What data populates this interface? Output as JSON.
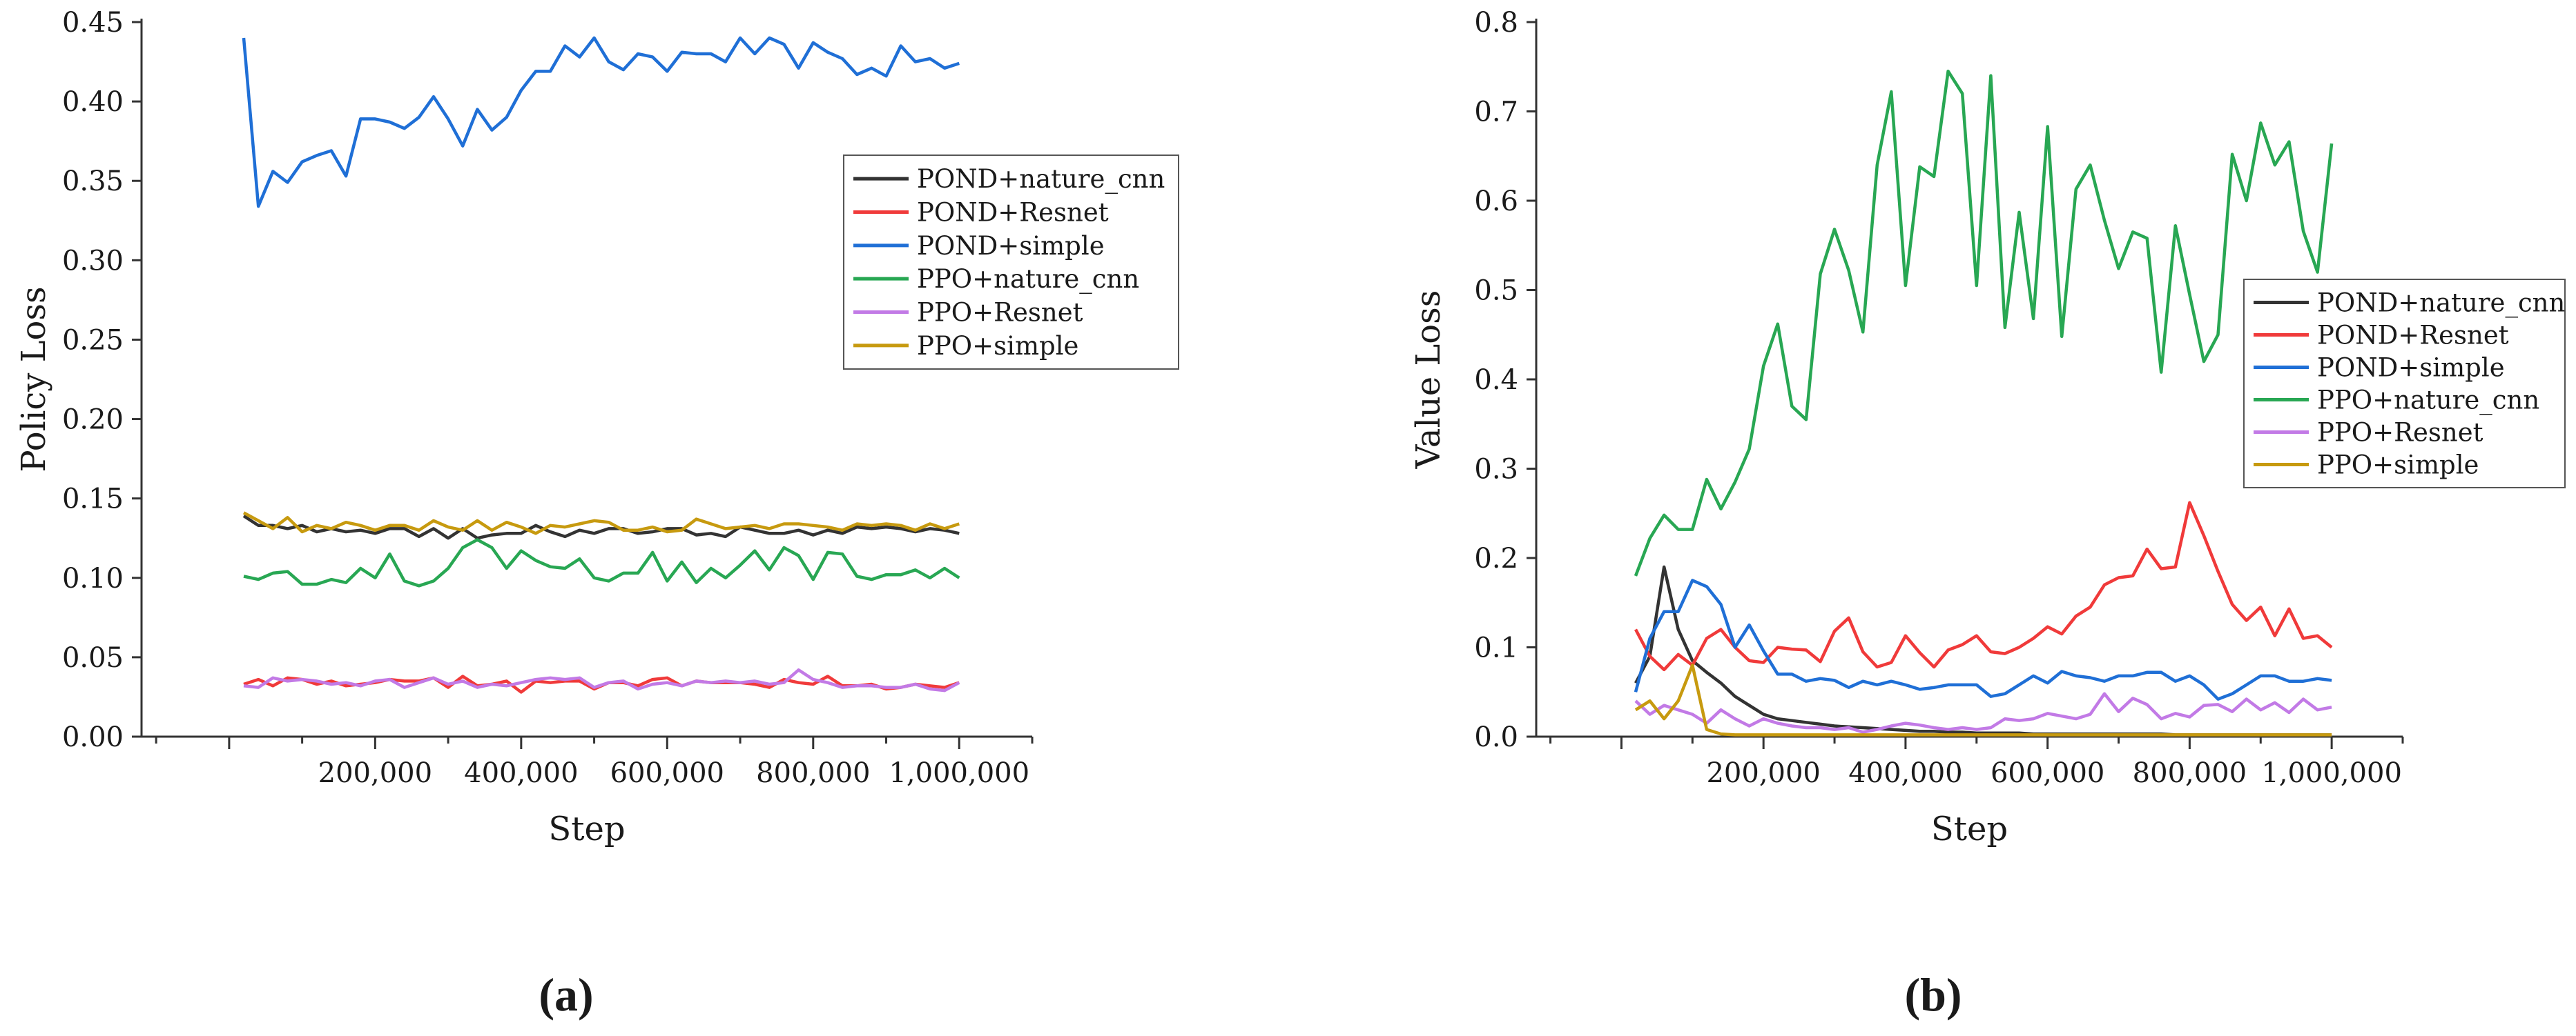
{
  "colors": {
    "POND+nature_cnn": "#333333",
    "POND+Resnet": "#f03a3a",
    "POND+simple": "#1f6fd6",
    "PPO+nature_cnn": "#28a753",
    "PPO+Resnet": "#c27ae6",
    "PPO+simple": "#c79a0f"
  },
  "chart_data": [
    {
      "type": "line",
      "caption": "(a)",
      "xlabel": "Step",
      "ylabel": "Policy Loss",
      "xlim": [
        -120000,
        1100000
      ],
      "ylim": [
        0,
        0.45
      ],
      "xticks": [
        0,
        200000,
        400000,
        600000,
        800000,
        1000000
      ],
      "xtick_labels": [
        "200,000",
        "400,000",
        "600,000",
        "800,000",
        "1,000,000"
      ],
      "xtick_label_values": [
        200000,
        400000,
        600000,
        800000,
        1000000
      ],
      "yticks": [
        0,
        0.05,
        0.1,
        0.15,
        0.2,
        0.25,
        0.3,
        0.35,
        0.4,
        0.45
      ],
      "ytick_labels": [
        "0.00",
        "0.05",
        "0.10",
        "0.15",
        "0.20",
        "0.25",
        "0.30",
        "0.35",
        "0.40",
        "0.45"
      ],
      "legend_position": "upper-right",
      "x": [
        20000,
        40000,
        60000,
        80000,
        100000,
        120000,
        140000,
        160000,
        180000,
        200000,
        220000,
        240000,
        260000,
        280000,
        300000,
        320000,
        340000,
        360000,
        380000,
        400000,
        420000,
        440000,
        460000,
        480000,
        500000,
        520000,
        540000,
        560000,
        580000,
        600000,
        620000,
        640000,
        660000,
        680000,
        700000,
        720000,
        740000,
        760000,
        780000,
        800000,
        820000,
        840000,
        860000,
        880000,
        900000,
        920000,
        940000,
        960000,
        980000,
        1000000
      ],
      "series": [
        {
          "name": "POND+nature_cnn",
          "values": [
            0.139,
            0.133,
            0.133,
            0.131,
            0.133,
            0.129,
            0.131,
            0.129,
            0.13,
            0.128,
            0.131,
            0.131,
            0.126,
            0.131,
            0.125,
            0.131,
            0.125,
            0.127,
            0.128,
            0.128,
            0.133,
            0.129,
            0.126,
            0.13,
            0.128,
            0.131,
            0.131,
            0.128,
            0.129,
            0.131,
            0.131,
            0.127,
            0.128,
            0.126,
            0.132,
            0.13,
            0.128,
            0.128,
            0.13,
            0.127,
            0.13,
            0.128,
            0.132,
            0.131,
            0.132,
            0.131,
            0.129,
            0.131,
            0.13,
            0.128
          ]
        },
        {
          "name": "POND+Resnet",
          "values": [
            0.033,
            0.036,
            0.032,
            0.037,
            0.036,
            0.033,
            0.035,
            0.032,
            0.033,
            0.034,
            0.036,
            0.035,
            0.035,
            0.037,
            0.031,
            0.038,
            0.032,
            0.033,
            0.035,
            0.028,
            0.035,
            0.034,
            0.035,
            0.035,
            0.03,
            0.034,
            0.034,
            0.032,
            0.036,
            0.037,
            0.032,
            0.035,
            0.034,
            0.034,
            0.034,
            0.033,
            0.031,
            0.036,
            0.034,
            0.033,
            0.038,
            0.032,
            0.032,
            0.033,
            0.03,
            0.031,
            0.033,
            0.032,
            0.031,
            0.034
          ]
        },
        {
          "name": "POND+simple",
          "values": [
            0.44,
            0.334,
            0.356,
            0.349,
            0.362,
            0.366,
            0.369,
            0.353,
            0.389,
            0.389,
            0.387,
            0.383,
            0.39,
            0.403,
            0.389,
            0.372,
            0.395,
            0.382,
            0.39,
            0.407,
            0.419,
            0.419,
            0.435,
            0.428,
            0.44,
            0.425,
            0.42,
            0.43,
            0.428,
            0.419,
            0.431,
            0.43,
            0.43,
            0.425,
            0.44,
            0.43,
            0.44,
            0.436,
            0.421,
            0.437,
            0.431,
            0.427,
            0.417,
            0.421,
            0.416,
            0.435,
            0.425,
            0.427,
            0.421,
            0.424
          ]
        },
        {
          "name": "PPO+nature_cnn",
          "values": [
            0.101,
            0.099,
            0.103,
            0.104,
            0.096,
            0.096,
            0.099,
            0.097,
            0.106,
            0.1,
            0.115,
            0.098,
            0.095,
            0.098,
            0.106,
            0.119,
            0.124,
            0.119,
            0.106,
            0.117,
            0.111,
            0.107,
            0.106,
            0.112,
            0.1,
            0.098,
            0.103,
            0.103,
            0.116,
            0.098,
            0.11,
            0.097,
            0.106,
            0.1,
            0.108,
            0.117,
            0.105,
            0.119,
            0.114,
            0.099,
            0.116,
            0.115,
            0.101,
            0.099,
            0.102,
            0.102,
            0.105,
            0.1,
            0.106,
            0.1
          ]
        },
        {
          "name": "PPO+Resnet",
          "values": [
            0.032,
            0.031,
            0.037,
            0.035,
            0.036,
            0.035,
            0.033,
            0.034,
            0.032,
            0.035,
            0.036,
            0.031,
            0.034,
            0.037,
            0.033,
            0.035,
            0.031,
            0.033,
            0.032,
            0.034,
            0.036,
            0.037,
            0.036,
            0.037,
            0.031,
            0.034,
            0.035,
            0.03,
            0.033,
            0.034,
            0.032,
            0.035,
            0.034,
            0.035,
            0.034,
            0.035,
            0.033,
            0.034,
            0.042,
            0.036,
            0.034,
            0.031,
            0.032,
            0.032,
            0.031,
            0.031,
            0.033,
            0.03,
            0.029,
            0.034
          ]
        },
        {
          "name": "PPO+simple",
          "values": [
            0.141,
            0.136,
            0.131,
            0.138,
            0.129,
            0.133,
            0.131,
            0.135,
            0.133,
            0.13,
            0.133,
            0.133,
            0.13,
            0.136,
            0.132,
            0.13,
            0.136,
            0.13,
            0.135,
            0.132,
            0.128,
            0.133,
            0.132,
            0.134,
            0.136,
            0.135,
            0.13,
            0.13,
            0.132,
            0.129,
            0.13,
            0.137,
            0.134,
            0.131,
            0.132,
            0.133,
            0.131,
            0.134,
            0.134,
            0.133,
            0.132,
            0.13,
            0.134,
            0.133,
            0.134,
            0.133,
            0.13,
            0.134,
            0.131,
            0.134
          ]
        }
      ]
    },
    {
      "type": "line",
      "caption": "(b)",
      "xlabel": "Step",
      "ylabel": "Value Loss",
      "xlim": [
        -120000,
        1100000
      ],
      "ylim": [
        0,
        0.8
      ],
      "xticks": [
        0,
        200000,
        400000,
        600000,
        800000,
        1000000
      ],
      "xtick_labels": [
        "200,000",
        "400,000",
        "600,000",
        "800,000",
        "1,000,000"
      ],
      "xtick_label_values": [
        200000,
        400000,
        600000,
        800000,
        1000000
      ],
      "yticks": [
        0,
        0.1,
        0.2,
        0.3,
        0.4,
        0.5,
        0.6,
        0.7,
        0.8
      ],
      "ytick_labels": [
        "0.0",
        "0.1",
        "0.2",
        "0.3",
        "0.4",
        "0.5",
        "0.6",
        "0.7",
        "0.8"
      ],
      "legend_position": "right",
      "x": [
        20000,
        40000,
        60000,
        80000,
        100000,
        120000,
        140000,
        160000,
        180000,
        200000,
        220000,
        240000,
        260000,
        280000,
        300000,
        320000,
        340000,
        360000,
        380000,
        400000,
        420000,
        440000,
        460000,
        480000,
        500000,
        520000,
        540000,
        560000,
        580000,
        600000,
        620000,
        640000,
        660000,
        680000,
        700000,
        720000,
        740000,
        760000,
        780000,
        800000,
        820000,
        840000,
        860000,
        880000,
        900000,
        920000,
        940000,
        960000,
        980000,
        1000000
      ],
      "series": [
        {
          "name": "POND+nature_cnn",
          "values": [
            0.06,
            0.09,
            0.19,
            0.12,
            0.085,
            0.072,
            0.06,
            0.045,
            0.035,
            0.025,
            0.02,
            0.018,
            0.016,
            0.014,
            0.012,
            0.011,
            0.01,
            0.009,
            0.008,
            0.007,
            0.006,
            0.006,
            0.005,
            0.005,
            0.004,
            0.004,
            0.004,
            0.004,
            0.003,
            0.003,
            0.003,
            0.003,
            0.003,
            0.003,
            0.003,
            0.003,
            0.003,
            0.003,
            0.002,
            0.002,
            0.002,
            0.002,
            0.002,
            0.002,
            0.002,
            0.002,
            0.002,
            0.002,
            0.002,
            0.002
          ]
        },
        {
          "name": "POND+Resnet",
          "values": [
            0.12,
            0.09,
            0.075,
            0.092,
            0.08,
            0.11,
            0.12,
            0.1,
            0.085,
            0.083,
            0.1,
            0.098,
            0.097,
            0.084,
            0.118,
            0.133,
            0.095,
            0.078,
            0.083,
            0.113,
            0.094,
            0.078,
            0.097,
            0.103,
            0.113,
            0.095,
            0.093,
            0.1,
            0.11,
            0.123,
            0.115,
            0.135,
            0.145,
            0.17,
            0.178,
            0.18,
            0.21,
            0.188,
            0.19,
            0.262,
            0.225,
            0.185,
            0.148,
            0.13,
            0.145,
            0.113,
            0.143,
            0.11,
            0.113,
            0.1
          ]
        },
        {
          "name": "POND+simple",
          "values": [
            0.05,
            0.11,
            0.14,
            0.14,
            0.175,
            0.168,
            0.148,
            0.1,
            0.125,
            0.096,
            0.07,
            0.07,
            0.062,
            0.065,
            0.063,
            0.055,
            0.062,
            0.058,
            0.062,
            0.058,
            0.053,
            0.055,
            0.058,
            0.058,
            0.058,
            0.045,
            0.048,
            0.058,
            0.068,
            0.06,
            0.073,
            0.068,
            0.066,
            0.062,
            0.068,
            0.068,
            0.072,
            0.072,
            0.062,
            0.068,
            0.058,
            0.042,
            0.048,
            0.058,
            0.068,
            0.068,
            0.062,
            0.062,
            0.065,
            0.063
          ]
        },
        {
          "name": "PPO+nature_cnn",
          "values": [
            0.18,
            0.222,
            0.248,
            0.232,
            0.232,
            0.288,
            0.255,
            0.285,
            0.322,
            0.415,
            0.462,
            0.37,
            0.355,
            0.518,
            0.568,
            0.522,
            0.453,
            0.64,
            0.722,
            0.505,
            0.638,
            0.627,
            0.745,
            0.72,
            0.505,
            0.74,
            0.458,
            0.587,
            0.468,
            0.683,
            0.448,
            0.613,
            0.64,
            0.578,
            0.524,
            0.565,
            0.558,
            0.408,
            0.572,
            0.495,
            0.42,
            0.45,
            0.652,
            0.6,
            0.687,
            0.64,
            0.666,
            0.566,
            0.52,
            0.664
          ]
        },
        {
          "name": "PPO+Resnet",
          "values": [
            0.04,
            0.025,
            0.035,
            0.03,
            0.025,
            0.015,
            0.03,
            0.02,
            0.012,
            0.02,
            0.015,
            0.012,
            0.01,
            0.01,
            0.008,
            0.01,
            0.005,
            0.008,
            0.012,
            0.015,
            0.013,
            0.01,
            0.008,
            0.01,
            0.008,
            0.01,
            0.02,
            0.018,
            0.02,
            0.026,
            0.023,
            0.02,
            0.025,
            0.048,
            0.028,
            0.043,
            0.036,
            0.02,
            0.026,
            0.022,
            0.035,
            0.036,
            0.028,
            0.042,
            0.03,
            0.038,
            0.027,
            0.042,
            0.03,
            0.033
          ]
        },
        {
          "name": "PPO+simple",
          "values": [
            0.03,
            0.04,
            0.02,
            0.04,
            0.08,
            0.008,
            0.003,
            0.002,
            0.002,
            0.002,
            0.002,
            0.002,
            0.002,
            0.002,
            0.002,
            0.002,
            0.002,
            0.002,
            0.002,
            0.002,
            0.002,
            0.002,
            0.002,
            0.002,
            0.002,
            0.002,
            0.002,
            0.002,
            0.002,
            0.002,
            0.002,
            0.002,
            0.002,
            0.002,
            0.002,
            0.002,
            0.002,
            0.002,
            0.002,
            0.002,
            0.002,
            0.002,
            0.002,
            0.002,
            0.002,
            0.002,
            0.002,
            0.002,
            0.002,
            0.002
          ]
        }
      ]
    }
  ]
}
